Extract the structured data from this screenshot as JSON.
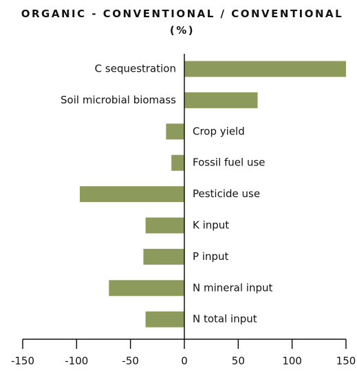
{
  "chart_data": {
    "type": "hbar",
    "title": "ORGANIC - CONVENTIONAL / CONVENTIONAL (%)",
    "categories": [
      "C sequestration",
      "Soil microbial biomass",
      "Crop yield",
      "Fossil fuel use",
      "Pesticide use",
      "K input",
      "P input",
      "N mineral input",
      "N total input"
    ],
    "values": [
      150,
      68,
      -17,
      -12,
      -97,
      -36,
      -38,
      -70,
      -36
    ],
    "color": "#8c9a5b",
    "xlim": [
      -150,
      150
    ],
    "xticks": [
      -150,
      -100,
      -50,
      0,
      50,
      100,
      150
    ]
  }
}
